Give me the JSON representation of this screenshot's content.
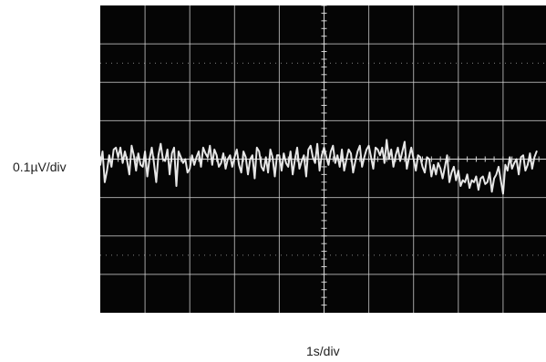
{
  "chart_data": {
    "type": "line",
    "title": "",
    "ylabel": "0.1µV/div",
    "xlabel": "1s/div",
    "x_divisions": 10,
    "y_divisions": 8,
    "grid": true,
    "colors": {
      "screen": "#050505",
      "grid": "#d8d8d8",
      "trace": "#f2f2f2"
    },
    "series": [
      {
        "x_unit": "div",
        "y_unit": "div",
        "x": [
          0.0,
          0.05,
          0.1,
          0.15,
          0.2,
          0.25,
          0.3,
          0.35,
          0.4,
          0.45,
          0.5,
          0.55,
          0.6,
          0.65,
          0.7,
          0.75,
          0.8,
          0.85,
          0.9,
          0.95,
          1.0,
          1.05,
          1.1,
          1.15,
          1.2,
          1.25,
          1.3,
          1.35,
          1.4,
          1.45,
          1.5,
          1.55,
          1.6,
          1.65,
          1.7,
          1.75,
          1.8,
          1.85,
          1.9,
          1.95,
          2.0,
          2.05,
          2.1,
          2.15,
          2.2,
          2.25,
          2.3,
          2.35,
          2.4,
          2.45,
          2.5,
          2.55,
          2.6,
          2.65,
          2.7,
          2.75,
          2.8,
          2.85,
          2.9,
          2.95,
          3.0,
          3.05,
          3.1,
          3.15,
          3.2,
          3.25,
          3.3,
          3.35,
          3.4,
          3.45,
          3.5,
          3.55,
          3.6,
          3.65,
          3.7,
          3.75,
          3.8,
          3.85,
          3.9,
          3.95,
          4.0,
          4.05,
          4.1,
          4.15,
          4.2,
          4.25,
          4.3,
          4.35,
          4.4,
          4.45,
          4.5,
          4.55,
          4.6,
          4.65,
          4.7,
          4.75,
          4.8,
          4.85,
          4.9,
          4.95,
          5.0,
          5.05,
          5.1,
          5.15,
          5.2,
          5.25,
          5.3,
          5.35,
          5.4,
          5.45,
          5.5,
          5.55,
          5.6,
          5.65,
          5.7,
          5.75,
          5.8,
          5.85,
          5.9,
          5.95,
          6.0,
          6.05,
          6.1,
          6.15,
          6.2,
          6.25,
          6.3,
          6.35,
          6.4,
          6.45,
          6.5,
          6.55,
          6.6,
          6.65,
          6.7,
          6.75,
          6.8,
          6.85,
          6.9,
          6.95,
          7.0,
          7.05,
          7.1,
          7.15,
          7.2,
          7.25,
          7.3,
          7.35,
          7.4,
          7.45,
          7.5,
          7.55,
          7.6,
          7.65,
          7.7,
          7.75,
          7.8,
          7.85,
          7.9,
          7.95,
          8.0,
          8.05,
          8.1,
          8.15,
          8.2,
          8.25,
          8.3,
          8.35,
          8.4,
          8.45,
          8.5,
          8.55,
          8.6,
          8.65,
          8.7,
          8.75,
          8.8,
          8.85,
          8.9,
          8.95,
          9.0,
          9.05,
          9.1,
          9.15,
          9.2,
          9.25,
          9.3,
          9.35,
          9.4,
          9.45,
          9.5,
          9.55,
          9.6,
          9.65,
          9.7,
          9.75
        ],
        "y": [
          -0.15,
          0.2,
          -0.6,
          -0.3,
          0.1,
          -0.2,
          0.25,
          0.3,
          0.05,
          0.3,
          -0.1,
          0.2,
          -0.05,
          -0.4,
          0.35,
          0.1,
          -0.3,
          0.15,
          -0.15,
          -0.2,
          0.2,
          -0.45,
          0.0,
          0.3,
          -0.1,
          -0.6,
          0.1,
          0.4,
          0.0,
          -0.05,
          0.25,
          -0.4,
          0.15,
          0.3,
          -0.7,
          0.2,
          0.05,
          -0.1,
          0.0,
          -0.35,
          -0.25,
          0.1,
          -0.15,
          0.05,
          0.2,
          -0.2,
          0.3,
          0.15,
          0.05,
          0.35,
          -0.15,
          0.25,
          0.1,
          -0.2,
          -0.1,
          0.15,
          -0.25,
          0.0,
          0.1,
          -0.2,
          0.05,
          0.25,
          -0.15,
          -0.35,
          0.2,
          0.05,
          -0.4,
          0.0,
          0.1,
          -0.5,
          0.3,
          0.2,
          -0.2,
          -0.3,
          0.05,
          -0.35,
          0.25,
          0.05,
          -0.45,
          0.1,
          0.1,
          -0.3,
          0.15,
          -0.1,
          -0.2,
          0.2,
          -0.4,
          0.0,
          0.3,
          -0.25,
          -0.05,
          0.1,
          -0.45,
          0.25,
          0.35,
          0.05,
          -0.1,
          0.4,
          -0.3,
          0.1,
          0.3,
          0.05,
          -0.15,
          0.2,
          0.35,
          -0.1,
          0.1,
          -0.2,
          0.25,
          -0.3,
          0.0,
          0.25,
          0.15,
          -0.35,
          -0.05,
          0.2,
          0.35,
          -0.2,
          0.05,
          0.25,
          0.35,
          0.05,
          -0.25,
          0.3,
          0.25,
          0.1,
          0.3,
          -0.1,
          0.5,
          0.0,
          0.25,
          -0.2,
          0.1,
          0.3,
          -0.05,
          0.2,
          0.45,
          -0.25,
          0.05,
          0.3,
          0.0,
          -0.3,
          0.1,
          0.05,
          -0.2,
          -0.35,
          0.05,
          0.0,
          -0.45,
          -0.15,
          -0.4,
          -0.1,
          -0.25,
          -0.5,
          -0.2,
          0.1,
          -0.6,
          -0.35,
          -0.2,
          -0.55,
          -0.3,
          -0.7,
          -0.55,
          -0.6,
          -0.4,
          -0.75,
          -0.55,
          -0.6,
          -0.45,
          -0.8,
          -0.5,
          -0.45,
          -0.65,
          -0.6,
          -0.35,
          -0.85,
          -0.5,
          -0.4,
          -0.2,
          -0.55,
          -0.9,
          -0.15,
          -0.3,
          0.05,
          -0.25,
          -0.1,
          0.0,
          -0.4,
          0.05,
          0.1,
          -0.3,
          -0.15,
          0.15,
          -0.25,
          0.05,
          0.2
        ]
      }
    ]
  }
}
